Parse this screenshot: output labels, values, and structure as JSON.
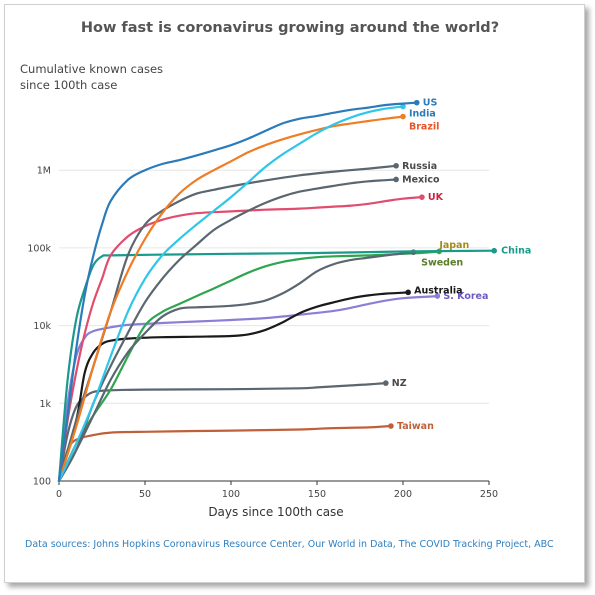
{
  "chart_data": {
    "type": "line",
    "title": "How fast is coronavirus growing around the world?",
    "ylabel": "Cumulative known cases\nsince 100th case",
    "xlabel": "Days since 100th case",
    "source": "Data sources: Johns Hopkins Coronavirus Resource Center, Our World in Data, The COVID Tracking Project, ABC",
    "y_scale": "log",
    "xlim": [
      0,
      250
    ],
    "ylim": [
      100,
      10000000
    ],
    "x_ticks": [
      0,
      50,
      100,
      150,
      200,
      250
    ],
    "y_ticks": [
      {
        "value": 100,
        "label": "100"
      },
      {
        "value": 1000,
        "label": "1k"
      },
      {
        "value": 10000,
        "label": "10k"
      },
      {
        "value": 100000,
        "label": "100k"
      },
      {
        "value": 1000000,
        "label": "1M"
      }
    ],
    "grid": true,
    "series": [
      {
        "name": "US",
        "color": "#2b7bba",
        "label_color": "#2b7bba",
        "points": [
          [
            0,
            100
          ],
          [
            5,
            700
          ],
          [
            10,
            5000
          ],
          [
            15,
            25000
          ],
          [
            20,
            80000
          ],
          [
            25,
            200000
          ],
          [
            30,
            400000
          ],
          [
            40,
            750000
          ],
          [
            50,
            1000000
          ],
          [
            60,
            1200000
          ],
          [
            70,
            1350000
          ],
          [
            80,
            1550000
          ],
          [
            90,
            1800000
          ],
          [
            100,
            2100000
          ],
          [
            110,
            2550000
          ],
          [
            120,
            3200000
          ],
          [
            130,
            4000000
          ],
          [
            140,
            4600000
          ],
          [
            150,
            5000000
          ],
          [
            160,
            5500000
          ],
          [
            170,
            6000000
          ],
          [
            180,
            6400000
          ],
          [
            190,
            6900000
          ],
          [
            200,
            7200000
          ],
          [
            208,
            7400000
          ]
        ]
      },
      {
        "name": "India",
        "color": "#2fc6e8",
        "label_color": "#2b7bba",
        "points": [
          [
            0,
            100
          ],
          [
            10,
            300
          ],
          [
            20,
            1000
          ],
          [
            30,
            4000
          ],
          [
            40,
            15000
          ],
          [
            50,
            40000
          ],
          [
            60,
            80000
          ],
          [
            70,
            130000
          ],
          [
            80,
            200000
          ],
          [
            90,
            300000
          ],
          [
            100,
            450000
          ],
          [
            110,
            700000
          ],
          [
            120,
            1100000
          ],
          [
            130,
            1600000
          ],
          [
            140,
            2200000
          ],
          [
            150,
            3000000
          ],
          [
            160,
            3900000
          ],
          [
            170,
            4800000
          ],
          [
            180,
            5600000
          ],
          [
            190,
            6200000
          ],
          [
            200,
            6600000
          ]
        ]
      },
      {
        "name": "Brazil",
        "color": "#f07c24",
        "label_color": "#e8552a",
        "points": [
          [
            0,
            100
          ],
          [
            10,
            500
          ],
          [
            20,
            3000
          ],
          [
            30,
            15000
          ],
          [
            40,
            50000
          ],
          [
            50,
            130000
          ],
          [
            60,
            280000
          ],
          [
            70,
            500000
          ],
          [
            80,
            750000
          ],
          [
            90,
            1000000
          ],
          [
            100,
            1300000
          ],
          [
            110,
            1700000
          ],
          [
            120,
            2100000
          ],
          [
            130,
            2500000
          ],
          [
            140,
            2900000
          ],
          [
            150,
            3300000
          ],
          [
            160,
            3700000
          ],
          [
            170,
            4000000
          ],
          [
            180,
            4300000
          ],
          [
            190,
            4600000
          ],
          [
            200,
            4900000
          ]
        ]
      },
      {
        "name": "Russia",
        "color": "#5a6670",
        "label_color": "#4a4a4a",
        "points": [
          [
            0,
            100
          ],
          [
            10,
            600
          ],
          [
            20,
            3000
          ],
          [
            30,
            15000
          ],
          [
            40,
            80000
          ],
          [
            50,
            200000
          ],
          [
            60,
            300000
          ],
          [
            70,
            400000
          ],
          [
            80,
            500000
          ],
          [
            90,
            560000
          ],
          [
            100,
            620000
          ],
          [
            120,
            740000
          ],
          [
            140,
            860000
          ],
          [
            160,
            960000
          ],
          [
            180,
            1050000
          ],
          [
            196,
            1140000
          ]
        ]
      },
      {
        "name": "Mexico",
        "color": "#5a6670",
        "label_color": "#4a4a4a",
        "points": [
          [
            0,
            100
          ],
          [
            10,
            250
          ],
          [
            20,
            1000
          ],
          [
            30,
            3000
          ],
          [
            40,
            8000
          ],
          [
            50,
            20000
          ],
          [
            60,
            40000
          ],
          [
            70,
            70000
          ],
          [
            80,
            110000
          ],
          [
            90,
            170000
          ],
          [
            100,
            230000
          ],
          [
            110,
            300000
          ],
          [
            120,
            380000
          ],
          [
            130,
            460000
          ],
          [
            140,
            530000
          ],
          [
            150,
            580000
          ],
          [
            160,
            630000
          ],
          [
            170,
            680000
          ],
          [
            180,
            720000
          ],
          [
            196,
            760000
          ]
        ]
      },
      {
        "name": "UK",
        "color": "#e04d6f",
        "label_color": "#d11f42",
        "points": [
          [
            0,
            100
          ],
          [
            5,
            600
          ],
          [
            10,
            2500
          ],
          [
            15,
            8000
          ],
          [
            20,
            20000
          ],
          [
            25,
            40000
          ],
          [
            30,
            80000
          ],
          [
            40,
            140000
          ],
          [
            50,
            190000
          ],
          [
            60,
            230000
          ],
          [
            70,
            260000
          ],
          [
            80,
            280000
          ],
          [
            100,
            295000
          ],
          [
            120,
            310000
          ],
          [
            140,
            320000
          ],
          [
            150,
            330000
          ],
          [
            160,
            340000
          ],
          [
            170,
            350000
          ],
          [
            180,
            370000
          ],
          [
            190,
            400000
          ],
          [
            200,
            430000
          ],
          [
            211,
            450000
          ]
        ]
      },
      {
        "name": "China",
        "color": "#1a9a8a",
        "label_color": "#1a9a8a",
        "points": [
          [
            0,
            100
          ],
          [
            5,
            2000
          ],
          [
            10,
            12000
          ],
          [
            15,
            30000
          ],
          [
            20,
            60000
          ],
          [
            25,
            78000
          ],
          [
            30,
            80000
          ],
          [
            60,
            82000
          ],
          [
            100,
            84000
          ],
          [
            150,
            86000
          ],
          [
            200,
            90000
          ],
          [
            253,
            92000
          ]
        ]
      },
      {
        "name": "Japan",
        "color": "#5a6670",
        "label_color": "#a58a1b",
        "points": [
          [
            0,
            100
          ],
          [
            10,
            250
          ],
          [
            20,
            700
          ],
          [
            30,
            2000
          ],
          [
            40,
            4500
          ],
          [
            50,
            8000
          ],
          [
            60,
            13000
          ],
          [
            70,
            16500
          ],
          [
            80,
            17200
          ],
          [
            90,
            17500
          ],
          [
            100,
            18000
          ],
          [
            110,
            19000
          ],
          [
            120,
            21000
          ],
          [
            130,
            26000
          ],
          [
            140,
            35000
          ],
          [
            150,
            50000
          ],
          [
            160,
            62000
          ],
          [
            170,
            70000
          ],
          [
            180,
            75000
          ],
          [
            190,
            80000
          ],
          [
            200,
            85000
          ],
          [
            206,
            88000
          ]
        ]
      },
      {
        "name": "Sweden",
        "color": "#2fa54f",
        "label_color": "#5a7d2a",
        "points": [
          [
            0,
            100
          ],
          [
            10,
            300
          ],
          [
            20,
            700
          ],
          [
            30,
            1500
          ],
          [
            40,
            4000
          ],
          [
            50,
            10000
          ],
          [
            60,
            15000
          ],
          [
            70,
            19000
          ],
          [
            80,
            24000
          ],
          [
            90,
            30000
          ],
          [
            100,
            38000
          ],
          [
            110,
            48000
          ],
          [
            120,
            58000
          ],
          [
            130,
            66000
          ],
          [
            140,
            72000
          ],
          [
            150,
            76000
          ],
          [
            160,
            78000
          ],
          [
            170,
            79000
          ],
          [
            180,
            80000
          ],
          [
            190,
            82000
          ],
          [
            210,
            86000
          ],
          [
            221,
            90000
          ]
        ]
      },
      {
        "name": "Australia",
        "color": "#1a1a1a",
        "label_color": "#1a1a1a",
        "points": [
          [
            0,
            100
          ],
          [
            10,
            600
          ],
          [
            15,
            2500
          ],
          [
            20,
            4500
          ],
          [
            25,
            5800
          ],
          [
            30,
            6400
          ],
          [
            40,
            6800
          ],
          [
            60,
            7100
          ],
          [
            80,
            7200
          ],
          [
            100,
            7350
          ],
          [
            110,
            7700
          ],
          [
            120,
            8800
          ],
          [
            130,
            11000
          ],
          [
            140,
            14500
          ],
          [
            150,
            17500
          ],
          [
            160,
            20000
          ],
          [
            170,
            22500
          ],
          [
            180,
            24500
          ],
          [
            190,
            25800
          ],
          [
            200,
            26500
          ],
          [
            203,
            26800
          ]
        ]
      },
      {
        "name": "S. Korea",
        "color": "#8a7fd6",
        "label_color": "#6b5bc4",
        "points": [
          [
            0,
            100
          ],
          [
            5,
            1000
          ],
          [
            10,
            4000
          ],
          [
            15,
            7000
          ],
          [
            20,
            8500
          ],
          [
            30,
            9500
          ],
          [
            40,
            10200
          ],
          [
            60,
            10800
          ],
          [
            80,
            11300
          ],
          [
            100,
            11800
          ],
          [
            120,
            12500
          ],
          [
            140,
            13800
          ],
          [
            160,
            15500
          ],
          [
            170,
            17000
          ],
          [
            180,
            19000
          ],
          [
            190,
            21000
          ],
          [
            200,
            22500
          ],
          [
            220,
            24000
          ]
        ]
      },
      {
        "name": "NZ",
        "color": "#5a6670",
        "label_color": "#4a4a4a",
        "points": [
          [
            0,
            100
          ],
          [
            5,
            400
          ],
          [
            10,
            900
          ],
          [
            15,
            1200
          ],
          [
            20,
            1400
          ],
          [
            30,
            1470
          ],
          [
            50,
            1500
          ],
          [
            100,
            1520
          ],
          [
            140,
            1560
          ],
          [
            150,
            1600
          ],
          [
            160,
            1650
          ],
          [
            170,
            1700
          ],
          [
            180,
            1750
          ],
          [
            190,
            1820
          ]
        ]
      },
      {
        "name": "Taiwan",
        "color": "#c0603a",
        "label_color": "#c0603a",
        "points": [
          [
            0,
            100
          ],
          [
            5,
            250
          ],
          [
            10,
            340
          ],
          [
            20,
            390
          ],
          [
            30,
            420
          ],
          [
            50,
            430
          ],
          [
            80,
            440
          ],
          [
            100,
            445
          ],
          [
            140,
            460
          ],
          [
            150,
            470
          ],
          [
            160,
            480
          ],
          [
            180,
            490
          ],
          [
            193,
            510
          ]
        ]
      }
    ]
  }
}
